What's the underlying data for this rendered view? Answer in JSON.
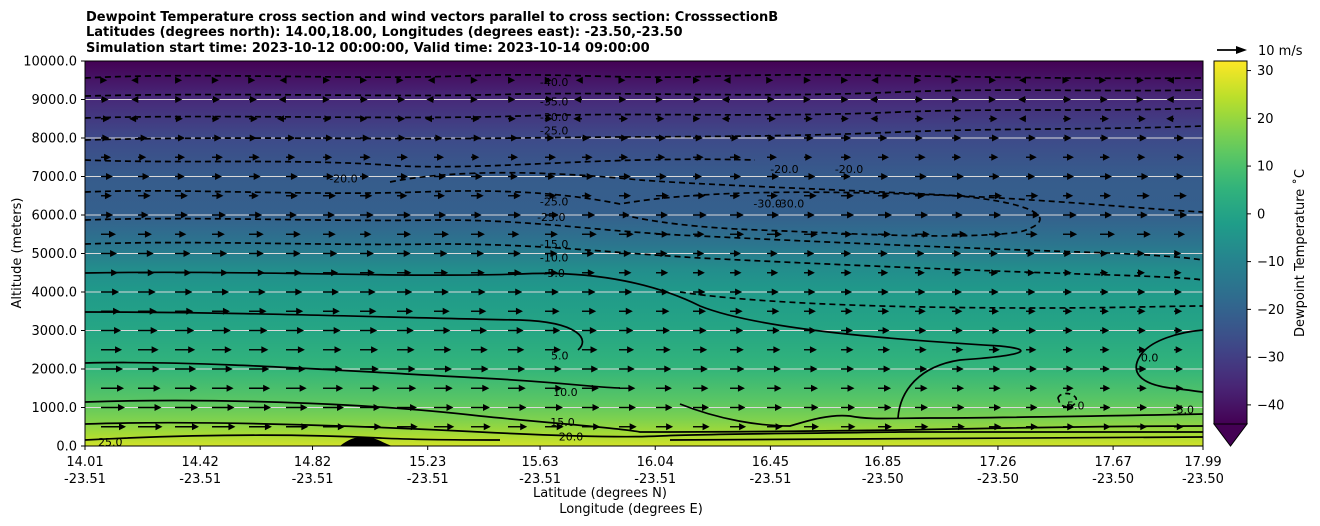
{
  "chart_data": {
    "type": "heatmap",
    "title_lines": [
      "Dewpoint Temperature cross section and wind vectors parallel to cross section: CrosssectionB",
      "Latitudes (degrees north): 14.00,18.00, Longitudes (degrees east): -23.50,-23.50",
      "Simulation start time: 2023-10-12 00:00:00, Valid time: 2023-10-14 09:00:00"
    ],
    "ylabel": "Altitude (meters)",
    "xlabel_lines": [
      "Latitude (degrees N)",
      "Longitude (degrees E)"
    ],
    "ylim": [
      0,
      10000
    ],
    "y_ticks": [
      0,
      1000,
      2000,
      3000,
      4000,
      5000,
      6000,
      7000,
      8000,
      9000,
      10000
    ],
    "y_tick_labels": [
      "0.0",
      "1000.0",
      "2000.0",
      "3000.0",
      "4000.0",
      "5000.0",
      "6000.0",
      "7000.0",
      "8000.0",
      "9000.0",
      "10000.0"
    ],
    "x_range": [
      14.01,
      17.99
    ],
    "x_ticks": [
      {
        "lat": "14.01",
        "lon": "-23.51"
      },
      {
        "lat": "14.42",
        "lon": "-23.51"
      },
      {
        "lat": "14.82",
        "lon": "-23.51"
      },
      {
        "lat": "15.23",
        "lon": "-23.51"
      },
      {
        "lat": "15.63",
        "lon": "-23.51"
      },
      {
        "lat": "16.04",
        "lon": "-23.51"
      },
      {
        "lat": "16.45",
        "lon": "-23.51"
      },
      {
        "lat": "16.85",
        "lon": "-23.50"
      },
      {
        "lat": "17.26",
        "lon": "-23.50"
      },
      {
        "lat": "17.67",
        "lon": "-23.50"
      },
      {
        "lat": "17.99",
        "lon": "-23.50"
      }
    ],
    "colorbar": {
      "label": "Dewpoint Temperature ˚C",
      "range": [
        -44,
        32
      ],
      "ticks": [
        -40,
        -30,
        -20,
        -10,
        0,
        10,
        20,
        30
      ],
      "tick_labels": [
        "−40",
        "−30",
        "−20",
        "−10",
        "0",
        "10",
        "20",
        "30"
      ],
      "extend": "min",
      "colormap": "viridis"
    },
    "quiver_key": {
      "label": "10 m/s",
      "speed": 10
    },
    "dewpoint_profile": [
      {
        "alt": 0,
        "value": 27
      },
      {
        "alt": 300,
        "value": 22
      },
      {
        "alt": 700,
        "value": 17
      },
      {
        "alt": 1200,
        "value": 12
      },
      {
        "alt": 2000,
        "value": 6
      },
      {
        "alt": 3000,
        "value": 1
      },
      {
        "alt": 4000,
        "value": -3
      },
      {
        "alt": 4600,
        "value": -7
      },
      {
        "alt": 5200,
        "value": -14
      },
      {
        "alt": 6000,
        "value": -21
      },
      {
        "alt": 7000,
        "value": -22
      },
      {
        "alt": 8000,
        "value": -27
      },
      {
        "alt": 9000,
        "value": -35
      },
      {
        "alt": 10000,
        "value": -44
      }
    ],
    "contour_labels": [
      {
        "text": "-40.0",
        "lat": 15.68,
        "alt": 9450
      },
      {
        "text": "-35.0",
        "lat": 15.68,
        "alt": 8950
      },
      {
        "text": "-30.0",
        "lat": 15.68,
        "alt": 8550
      },
      {
        "text": "-25.0",
        "lat": 15.68,
        "alt": 8200
      },
      {
        "text": "-20.0",
        "lat": 14.93,
        "alt": 6950
      },
      {
        "text": "-25.0",
        "lat": 15.68,
        "alt": 6350
      },
      {
        "text": "-25.0",
        "lat": 15.67,
        "alt": 5950
      },
      {
        "text": "-15.0",
        "lat": 15.68,
        "alt": 5250
      },
      {
        "text": "-10.0",
        "lat": 15.68,
        "alt": 4900
      },
      {
        "text": "-5.0",
        "lat": 15.68,
        "alt": 4500
      },
      {
        "text": "5.0",
        "lat": 15.7,
        "alt": 2350
      },
      {
        "text": "10.0",
        "lat": 15.72,
        "alt": 1400
      },
      {
        "text": "15.0",
        "lat": 15.71,
        "alt": 620
      },
      {
        "text": "20.0",
        "lat": 15.74,
        "alt": 250
      },
      {
        "text": "25.0",
        "lat": 14.1,
        "alt": 100
      },
      {
        "text": "-20.0",
        "lat": 16.5,
        "alt": 7200
      },
      {
        "text": "-20.0",
        "lat": 16.73,
        "alt": 7200
      },
      {
        "text": "-30.0",
        "lat": 16.44,
        "alt": 6300
      },
      {
        "text": "-30.0",
        "lat": 16.52,
        "alt": 6300
      },
      {
        "text": "0.0",
        "lat": 17.8,
        "alt": 2300
      },
      {
        "text": "-5.0",
        "lat": 17.53,
        "alt": 1050
      },
      {
        "text": "-5.0",
        "lat": 17.92,
        "alt": 950
      }
    ]
  }
}
